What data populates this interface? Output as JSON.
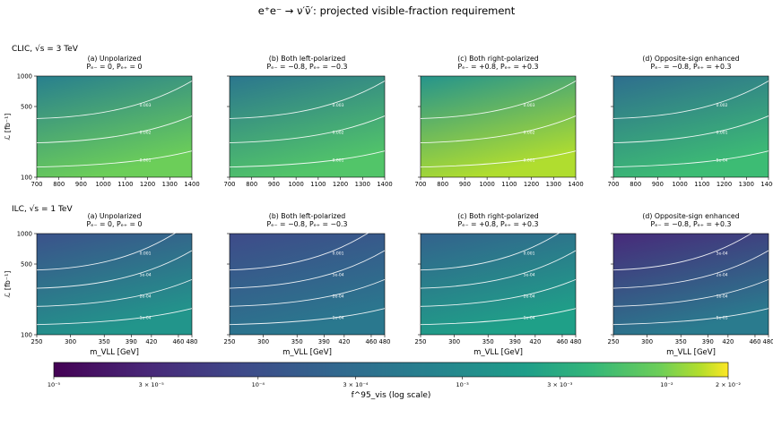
{
  "figure": {
    "suptitle": "e⁺e⁻ → ν′ν̄′: projected visible-fraction requirement",
    "rows": [
      {
        "label": "CLIC, √s = 3 TeV"
      },
      {
        "label": "ILC, √s = 1 TeV"
      }
    ],
    "panels": [
      {
        "title": "(a) Unpolarized",
        "subtitle": "Pₑ₋ = 0,  Pₑ₊ = 0"
      },
      {
        "title": "(b) Both left-polarized",
        "subtitle": "Pₑ₋ = −0.8,  Pₑ₊ = −0.3"
      },
      {
        "title": "(c) Both right-polarized",
        "subtitle": "Pₑ₋ = +0.8,  Pₑ₊ = +0.3"
      },
      {
        "title": "(d) Opposite-sign enhanced",
        "subtitle": "Pₑ₋ = −0.8,  Pₑ₊ = +0.3"
      }
    ],
    "ylabel": "ℒ [fb⁻¹]",
    "xlabel_ilc": "m_VLL [GeV]",
    "colorbar": {
      "label": "f^95_vis (log scale)",
      "scale": "log",
      "range": [
        1e-05,
        0.02
      ],
      "ticks": [
        "10⁻⁵",
        "3 × 10⁻⁵",
        "10⁻⁴",
        "3 × 10⁻⁴",
        "10⁻³",
        "3 × 10⁻³",
        "10⁻²",
        "2 × 10⁻²"
      ],
      "tick_values": [
        1e-05,
        3e-05,
        0.0001,
        0.0003,
        0.001,
        0.003,
        0.01,
        0.02
      ],
      "colormap": "viridis"
    }
  },
  "chart_data": [
    {
      "type": "heatmap",
      "row": "CLIC",
      "panel": "a",
      "x_ticks": [
        700,
        800,
        900,
        1000,
        1100,
        1200,
        1300,
        1400
      ],
      "y_ticks": [
        100,
        500,
        1000
      ],
      "y_scale": "log",
      "contours": [
        "0.001",
        "0.002",
        "0.003"
      ]
    },
    {
      "type": "heatmap",
      "row": "CLIC",
      "panel": "b",
      "x_ticks": [
        700,
        800,
        900,
        1000,
        1100,
        1200,
        1300,
        1400
      ],
      "y_ticks": [
        100,
        500,
        1000
      ],
      "y_scale": "log",
      "contours": [
        "0.001",
        "0.002",
        "0.003"
      ]
    },
    {
      "type": "heatmap",
      "row": "CLIC",
      "panel": "c",
      "x_ticks": [
        700,
        800,
        900,
        1000,
        1100,
        1200,
        1300,
        1400
      ],
      "y_ticks": [
        100,
        500,
        1000
      ],
      "y_scale": "log",
      "contours": [
        "0.001",
        "0.002",
        "0.003"
      ]
    },
    {
      "type": "heatmap",
      "row": "CLIC",
      "panel": "d",
      "x_ticks": [
        700,
        800,
        900,
        1000,
        1100,
        1200,
        1300,
        1400
      ],
      "y_ticks": [
        100,
        500,
        1000
      ],
      "y_scale": "log",
      "contours": [
        "5e-04",
        "0.001",
        "0.002"
      ]
    },
    {
      "type": "heatmap",
      "row": "ILC",
      "panel": "a",
      "x_ticks": [
        250,
        300,
        350,
        390,
        420,
        460,
        480
      ],
      "y_ticks": [
        100,
        500,
        1000
      ],
      "y_scale": "log",
      "contours": [
        "1e-04",
        "2e-04",
        "5e-04",
        "0.001"
      ]
    },
    {
      "type": "heatmap",
      "row": "ILC",
      "panel": "b",
      "x_ticks": [
        250,
        300,
        350,
        390,
        420,
        460,
        480
      ],
      "y_ticks": [
        100,
        500,
        1000
      ],
      "y_scale": "log",
      "contours": [
        "1e-04",
        "2e-04",
        "5e-04",
        "0.001"
      ]
    },
    {
      "type": "heatmap",
      "row": "ILC",
      "panel": "c",
      "x_ticks": [
        250,
        300,
        350,
        390,
        420,
        460,
        480
      ],
      "y_ticks": [
        100,
        500,
        1000
      ],
      "y_scale": "log",
      "contours": [
        "1e-04",
        "2e-04",
        "5e-04",
        "0.001"
      ]
    },
    {
      "type": "heatmap",
      "row": "ILC",
      "panel": "d",
      "x_ticks": [
        250,
        300,
        350,
        390,
        420,
        460,
        480
      ],
      "y_ticks": [
        100,
        500,
        1000
      ],
      "y_scale": "log",
      "contours": [
        "5e-05",
        "1e-04",
        "2e-04",
        "5e-04"
      ]
    }
  ]
}
